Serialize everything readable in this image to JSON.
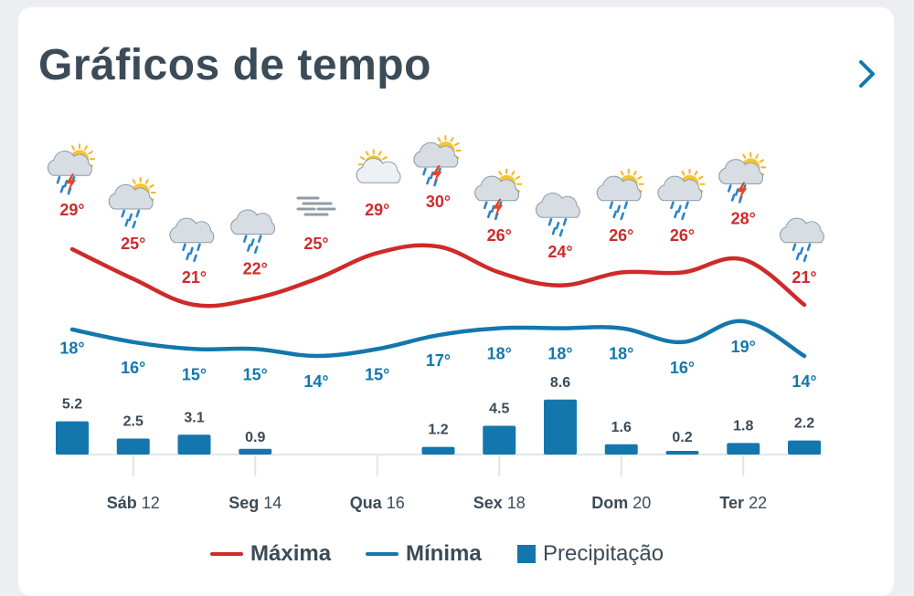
{
  "header": {
    "title": "Gráficos de tempo"
  },
  "colors": {
    "max": "#cf2a2a",
    "min": "#1377ad",
    "precip": "#1377ad",
    "text": "#3b4b57",
    "chevron": "#1377ad"
  },
  "legend": {
    "max_label": "Máxima",
    "min_label": "Mínima",
    "precip_label": "Precipitação"
  },
  "chart_data": {
    "type": "line",
    "days": [
      {
        "icon": "thunderstorm-sun-icon",
        "max": 29,
        "min": 18,
        "precip": 5.2
      },
      {
        "icon": "rain-sun-icon",
        "max": 25,
        "min": 16,
        "precip": 2.5
      },
      {
        "icon": "rain-cloud-icon",
        "max": 21,
        "min": 15,
        "precip": 3.1
      },
      {
        "icon": "rain-cloud-icon",
        "max": 22,
        "min": 15,
        "precip": 0.9
      },
      {
        "icon": "fog-icon",
        "max": 25,
        "min": 14,
        "precip": 0
      },
      {
        "icon": "partly-cloudy-icon",
        "max": 29,
        "min": 15,
        "precip": 0
      },
      {
        "icon": "thunderstorm-sun-icon",
        "max": 30,
        "min": 17,
        "precip": 1.2
      },
      {
        "icon": "thunderstorm-sun-icon",
        "max": 26,
        "min": 18,
        "precip": 4.5
      },
      {
        "icon": "rain-cloud-icon",
        "max": 24,
        "min": 18,
        "precip": 8.6
      },
      {
        "icon": "rain-sun-icon",
        "max": 26,
        "min": 18,
        "precip": 1.6
      },
      {
        "icon": "rain-sun-icon",
        "max": 26,
        "min": 16,
        "precip": 0.2
      },
      {
        "icon": "thunderstorm-sun-icon",
        "max": 28,
        "min": 19,
        "precip": 1.8
      },
      {
        "icon": "rain-cloud-icon",
        "max": 21,
        "min": 14,
        "precip": 2.2
      }
    ],
    "max_labels": [
      "29°",
      "25°",
      "21°",
      "22°",
      "25°",
      "29°",
      "30°",
      "26°",
      "24°",
      "26°",
      "26°",
      "28°",
      "21°"
    ],
    "min_labels": [
      "18°",
      "16°",
      "15°",
      "15°",
      "14°",
      "15°",
      "17°",
      "18°",
      "18°",
      "18°",
      "16°",
      "19°",
      "14°"
    ],
    "precip_labels": [
      "5.2",
      "2.5",
      "3.1",
      "0.9",
      "",
      "",
      "1.2",
      "4.5",
      "8.6",
      "1.6",
      "0.2",
      "1.8",
      "2.2"
    ],
    "x_ticks": [
      {
        "day_index": 1.0,
        "weekday": "Sáb",
        "day": "12"
      },
      {
        "day_index": 3.0,
        "weekday": "Seg",
        "day": "14"
      },
      {
        "day_index": 5.0,
        "weekday": "Qua",
        "day": "16"
      },
      {
        "day_index": 7.0,
        "weekday": "Sex",
        "day": "18"
      },
      {
        "day_index": 9.0,
        "weekday": "Dom",
        "day": "20"
      },
      {
        "day_index": 11.0,
        "weekday": "Ter",
        "day": "22"
      }
    ],
    "series": [
      {
        "name": "Máxima"
      },
      {
        "name": "Mínima"
      },
      {
        "name": "Precipitação"
      }
    ]
  }
}
